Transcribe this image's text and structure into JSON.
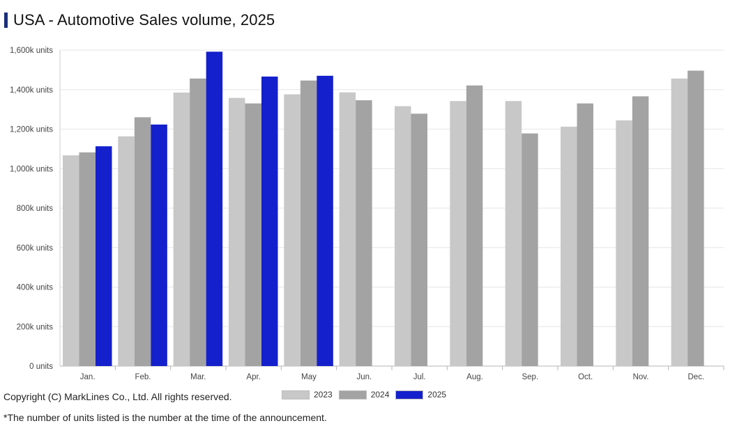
{
  "header": {
    "title": "USA - Automotive Sales volume, 2025"
  },
  "chart_data": {
    "type": "bar",
    "title": "USA - Automotive Sales volume, 2025",
    "xlabel": "",
    "ylabel": "",
    "ylim": [
      0,
      1600
    ],
    "yticks": [
      "0 units",
      "200k units",
      "400k units",
      "600k units",
      "800k units",
      "1,000k units",
      "1,200k units",
      "1,400k units",
      "1,600k units"
    ],
    "categories": [
      "Jan.",
      "Feb.",
      "Mar.",
      "Apr.",
      "May",
      "Jun.",
      "Jul.",
      "Aug.",
      "Sep.",
      "Oct.",
      "Nov.",
      "Dec."
    ],
    "series": [
      {
        "name": "2023",
        "color": "#c8c8c8",
        "values": [
          1067,
          1163,
          1385,
          1358,
          1376,
          1386,
          1316,
          1342,
          1342,
          1212,
          1244,
          1456
        ]
      },
      {
        "name": "2024",
        "color": "#a3a3a3",
        "values": [
          1082,
          1260,
          1456,
          1330,
          1446,
          1346,
          1278,
          1421,
          1178,
          1330,
          1366,
          1496
        ]
      },
      {
        "name": "2025",
        "color": "#1420cc",
        "values": [
          1113,
          1223,
          1592,
          1466,
          1470,
          null,
          null,
          null,
          null,
          null,
          null,
          null
        ]
      }
    ],
    "legend": "bottom-center",
    "grid": true
  },
  "footer": {
    "copyright": "Copyright (C) MarkLines Co., Ltd. All rights reserved.",
    "note": "*The number of units listed is the number at the time of the announcement."
  }
}
